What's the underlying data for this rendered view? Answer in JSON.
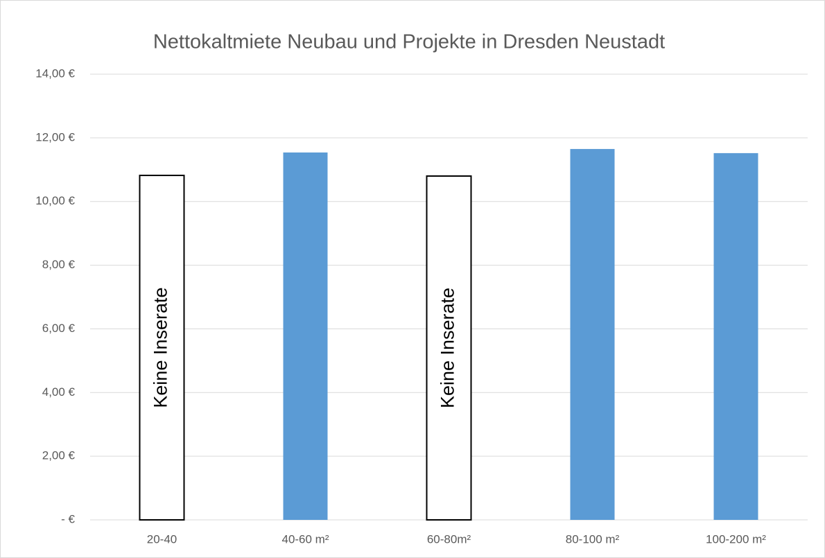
{
  "chart_data": {
    "type": "bar",
    "title": "Nettokaltmiete Neubau und Projekte in Dresden Neustadt",
    "categories": [
      "20-40",
      "40-60 m²",
      "60-80m²",
      "80-100 m²",
      "100-200 m²"
    ],
    "values": [
      10.82,
      11.54,
      10.8,
      11.65,
      11.52
    ],
    "colors": [
      "#ffffff",
      "#5b9bd5",
      "#ffffff",
      "#5b9bd5",
      "#5b9bd5"
    ],
    "edgecolors": [
      "#000000",
      null,
      "#000000",
      null,
      null
    ],
    "annotations": [
      {
        "text": "Keine Inserate",
        "category": 0
      },
      {
        "text": "Keine Inserate",
        "category": 2
      }
    ],
    "ylim": [
      0,
      14
    ],
    "yticks": [
      {
        "value": 0,
        "label": "-   €"
      },
      {
        "value": 2,
        "label": "2,00 €"
      },
      {
        "value": 4,
        "label": "4,00 €"
      },
      {
        "value": 6,
        "label": "6,00 €"
      },
      {
        "value": 8,
        "label": "8,00 €"
      },
      {
        "value": 10,
        "label": "10,00 €"
      },
      {
        "value": 12,
        "label": "12,00 €"
      },
      {
        "value": 14,
        "label": "14,00 €"
      }
    ],
    "grid": true
  }
}
